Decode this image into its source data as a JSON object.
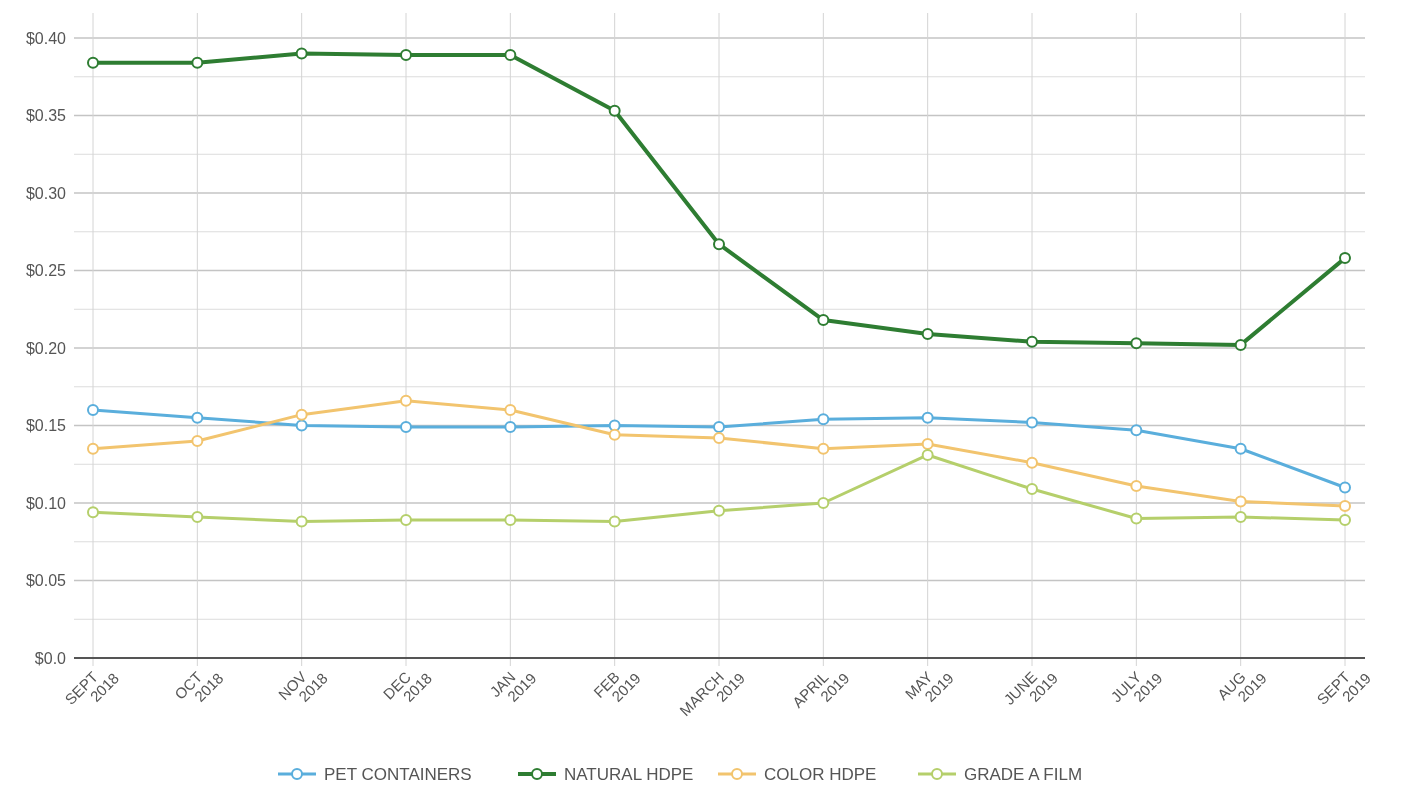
{
  "chart_data": {
    "type": "line",
    "categories": [
      "SEPT 2018",
      "OCT 2018",
      "NOV 2018",
      "DEC 2018",
      "JAN 2019",
      "FEB 2019",
      "MARCH 2019",
      "APRIL 2019",
      "MAY 2019",
      "JUNE 2019",
      "JULY 2019",
      "AUG 2019",
      "SEPT 2019"
    ],
    "series": [
      {
        "name": "PET CONTAINERS",
        "color": "#5aaedc",
        "values": [
          0.16,
          0.155,
          0.15,
          0.149,
          0.149,
          0.15,
          0.149,
          0.154,
          0.155,
          0.152,
          0.147,
          0.135,
          0.11
        ]
      },
      {
        "name": "NATURAL HDPE",
        "color": "#2e7d32",
        "values": [
          0.384,
          0.384,
          0.39,
          0.389,
          0.389,
          0.353,
          0.267,
          0.218,
          0.209,
          0.204,
          0.203,
          0.202,
          0.258
        ]
      },
      {
        "name": "COLOR HDPE",
        "color": "#f2c46e",
        "values": [
          0.135,
          0.14,
          0.157,
          0.166,
          0.16,
          0.144,
          0.142,
          0.135,
          0.138,
          0.126,
          0.111,
          0.101,
          0.098
        ]
      },
      {
        "name": "GRADE A FILM",
        "color": "#b5cf6b",
        "values": [
          0.094,
          0.091,
          0.088,
          0.089,
          0.089,
          0.088,
          0.095,
          0.1,
          0.131,
          0.109,
          0.09,
          0.091,
          0.089
        ]
      }
    ],
    "ylim": [
      0,
      0.4
    ],
    "yticks": [
      {
        "value": 0,
        "label": "$0.0"
      },
      {
        "value": 0.025,
        "label": null
      },
      {
        "value": 0.05,
        "label": "$0.05"
      },
      {
        "value": 0.075,
        "label": null
      },
      {
        "value": 0.1,
        "label": "$0.10"
      },
      {
        "value": 0.125,
        "label": null
      },
      {
        "value": 0.15,
        "label": "$0.15"
      },
      {
        "value": 0.175,
        "label": null
      },
      {
        "value": 0.2,
        "label": "$0.20"
      },
      {
        "value": 0.225,
        "label": null
      },
      {
        "value": 0.25,
        "label": "$0.25"
      },
      {
        "value": 0.275,
        "label": null
      },
      {
        "value": 0.3,
        "label": "$0.30"
      },
      {
        "value": 0.325,
        "label": null
      },
      {
        "value": 0.35,
        "label": "$0.35"
      },
      {
        "value": 0.375,
        "label": null
      },
      {
        "value": 0.4,
        "label": "$0.40"
      }
    ],
    "grid": true,
    "legend": "bottom",
    "marker": "circle",
    "line_style": "solid"
  }
}
